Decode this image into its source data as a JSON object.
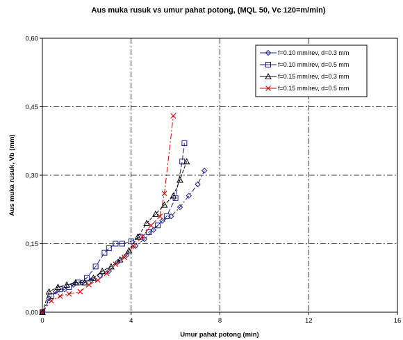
{
  "chart_data": {
    "type": "line",
    "title": "Aus muka rusuk vs umur pahat potong, (MQL 50, Vc 120=m/min)",
    "xlabel": "Umur pahat potong (min)",
    "ylabel": "Aus muka rusuk, Vb (mm)",
    "xlim": [
      0,
      16
    ],
    "ylim": [
      0,
      0.6
    ],
    "xticks": [
      "0",
      "4",
      "8",
      "12",
      "16"
    ],
    "yticks": [
      "0,00",
      "0,15",
      "0,30",
      "0,45",
      "0,60"
    ],
    "grid": true,
    "legend_position": "top-right",
    "series": [
      {
        "name": "f=0.10 mm/rev, d=0.3 mm",
        "color": "#1a1a8c",
        "marker": "diamond",
        "x": [
          0,
          0.3,
          0.6,
          1.0,
          1.4,
          1.8,
          2.2,
          2.6,
          3.0,
          3.4,
          3.8,
          4.2,
          4.6,
          5.0,
          5.4,
          5.8,
          6.2,
          6.6,
          7.0,
          7.3
        ],
        "y": [
          0.0,
          0.03,
          0.045,
          0.05,
          0.06,
          0.065,
          0.07,
          0.08,
          0.09,
          0.11,
          0.125,
          0.145,
          0.16,
          0.18,
          0.2,
          0.21,
          0.23,
          0.255,
          0.28,
          0.31
        ]
      },
      {
        "name": "f=0.10 mm/rev, d=0.5 mm",
        "color": "#1a1a8c",
        "marker": "square",
        "x": [
          0,
          0.4,
          0.8,
          1.2,
          1.6,
          2.0,
          2.4,
          2.8,
          3.0,
          3.3,
          3.6,
          4.0,
          4.4,
          4.8,
          5.2,
          5.6,
          6.0,
          6.3,
          6.4
        ],
        "y": [
          0.0,
          0.035,
          0.05,
          0.055,
          0.065,
          0.075,
          0.1,
          0.13,
          0.14,
          0.15,
          0.15,
          0.155,
          0.165,
          0.175,
          0.19,
          0.21,
          0.25,
          0.33,
          0.37
        ]
      },
      {
        "name": "f=0.15 mm/rev, d=0.3 mm",
        "color": "#000000",
        "marker": "triangle",
        "x": [
          0,
          0.3,
          0.7,
          1.1,
          1.5,
          1.9,
          2.3,
          2.7,
          3.1,
          3.5,
          3.9,
          4.3,
          4.7,
          5.1,
          5.5,
          5.9,
          6.2,
          6.5
        ],
        "y": [
          0.0,
          0.045,
          0.055,
          0.06,
          0.065,
          0.065,
          0.075,
          0.09,
          0.1,
          0.115,
          0.135,
          0.165,
          0.195,
          0.215,
          0.235,
          0.255,
          0.29,
          0.33
        ]
      },
      {
        "name": "f=0.15 mm/rev, d=0.5 mm",
        "color": "#cc0000",
        "marker": "x",
        "x": [
          0,
          0.4,
          0.8,
          1.2,
          1.7,
          2.1,
          2.5,
          2.9,
          3.3,
          3.7,
          4.1,
          4.5,
          4.9,
          5.3,
          5.5,
          5.9
        ],
        "y": [
          0.0,
          0.025,
          0.035,
          0.04,
          0.045,
          0.06,
          0.07,
          0.085,
          0.105,
          0.12,
          0.145,
          0.165,
          0.19,
          0.21,
          0.26,
          0.43
        ]
      }
    ]
  }
}
